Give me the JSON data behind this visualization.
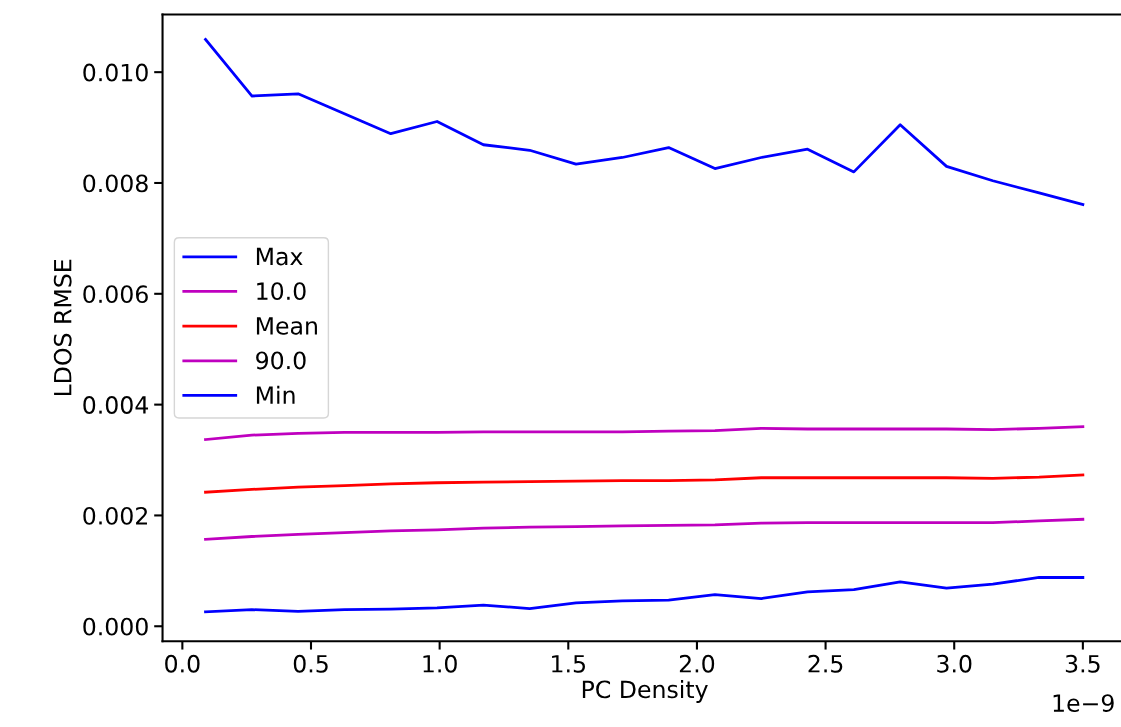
{
  "chart_data": {
    "type": "line",
    "xlabel": "PC Density",
    "ylabel": "LDOS RMSE",
    "annotations": [
      "1e−9"
    ],
    "x": [
      0.09,
      0.27,
      0.45,
      0.63,
      0.81,
      0.99,
      1.17,
      1.35,
      1.53,
      1.71,
      1.89,
      2.07,
      2.25,
      2.43,
      2.61,
      2.79,
      2.97,
      3.15,
      3.33,
      3.5
    ],
    "xlim": [
      -0.077,
      3.67
    ],
    "xticks": [
      {
        "value": 0,
        "label": "0.0"
      },
      {
        "value": 0.5,
        "label": "0.5"
      },
      {
        "value": 1,
        "label": "1.0"
      },
      {
        "value": 1.5,
        "label": "1.5"
      },
      {
        "value": 2,
        "label": "2.0"
      },
      {
        "value": 2.5,
        "label": "2.5"
      },
      {
        "value": 3,
        "label": "3.0"
      },
      {
        "value": 3.5,
        "label": "3.5"
      }
    ],
    "ylim": [
      -0.00027,
      0.01104
    ],
    "yticks": [
      {
        "value": 0,
        "label": "0.000"
      },
      {
        "value": 0.002,
        "label": "0.002"
      },
      {
        "value": 0.004,
        "label": "0.004"
      },
      {
        "value": 0.006,
        "label": "0.006"
      },
      {
        "value": 0.008,
        "label": "0.008"
      },
      {
        "value": 0.01,
        "label": "0.010"
      }
    ],
    "grid": false,
    "legend": "center left",
    "line_style": "solid",
    "marker": "none",
    "series": [
      {
        "name": "Max",
        "color": "#0000ff",
        "values": [
          0.01059,
          0.00957,
          0.00961,
          0.00925,
          0.00889,
          0.00911,
          0.00869,
          0.00859,
          0.00834,
          0.00846,
          0.00864,
          0.00826,
          0.00846,
          0.00861,
          0.0082,
          0.00905,
          0.0083,
          0.00804,
          0.00782,
          0.00761
        ]
      },
      {
        "name": "10.0",
        "color": "#bf00bf",
        "values": [
          0.00157,
          0.00162,
          0.00166,
          0.00169,
          0.00172,
          0.00174,
          0.00177,
          0.00179,
          0.0018,
          0.00181,
          0.00182,
          0.00183,
          0.00186,
          0.00187,
          0.00187,
          0.00187,
          0.00187,
          0.00187,
          0.0019,
          0.00193
        ]
      },
      {
        "name": "Mean",
        "color": "#ff0000",
        "values": [
          0.00242,
          0.00247,
          0.00251,
          0.00254,
          0.00257,
          0.00259,
          0.0026,
          0.00261,
          0.00262,
          0.00263,
          0.00263,
          0.00264,
          0.00268,
          0.00268,
          0.00268,
          0.00268,
          0.00268,
          0.00267,
          0.00269,
          0.00273
        ]
      },
      {
        "name": "90.0",
        "color": "#bf00bf",
        "values": [
          0.00337,
          0.00345,
          0.00348,
          0.0035,
          0.0035,
          0.0035,
          0.00351,
          0.00351,
          0.00351,
          0.00351,
          0.00352,
          0.00353,
          0.00357,
          0.00356,
          0.00356,
          0.00356,
          0.00356,
          0.00355,
          0.00357,
          0.0036
        ]
      },
      {
        "name": "Min",
        "color": "#0000ff",
        "values": [
          0.00026,
          0.0003,
          0.00027,
          0.0003,
          0.00031,
          0.00033,
          0.00038,
          0.00032,
          0.00042,
          0.00046,
          0.00047,
          0.00057,
          0.0005,
          0.00062,
          0.00066,
          0.0008,
          0.00069,
          0.00076,
          0.00088,
          0.00088
        ]
      }
    ]
  }
}
